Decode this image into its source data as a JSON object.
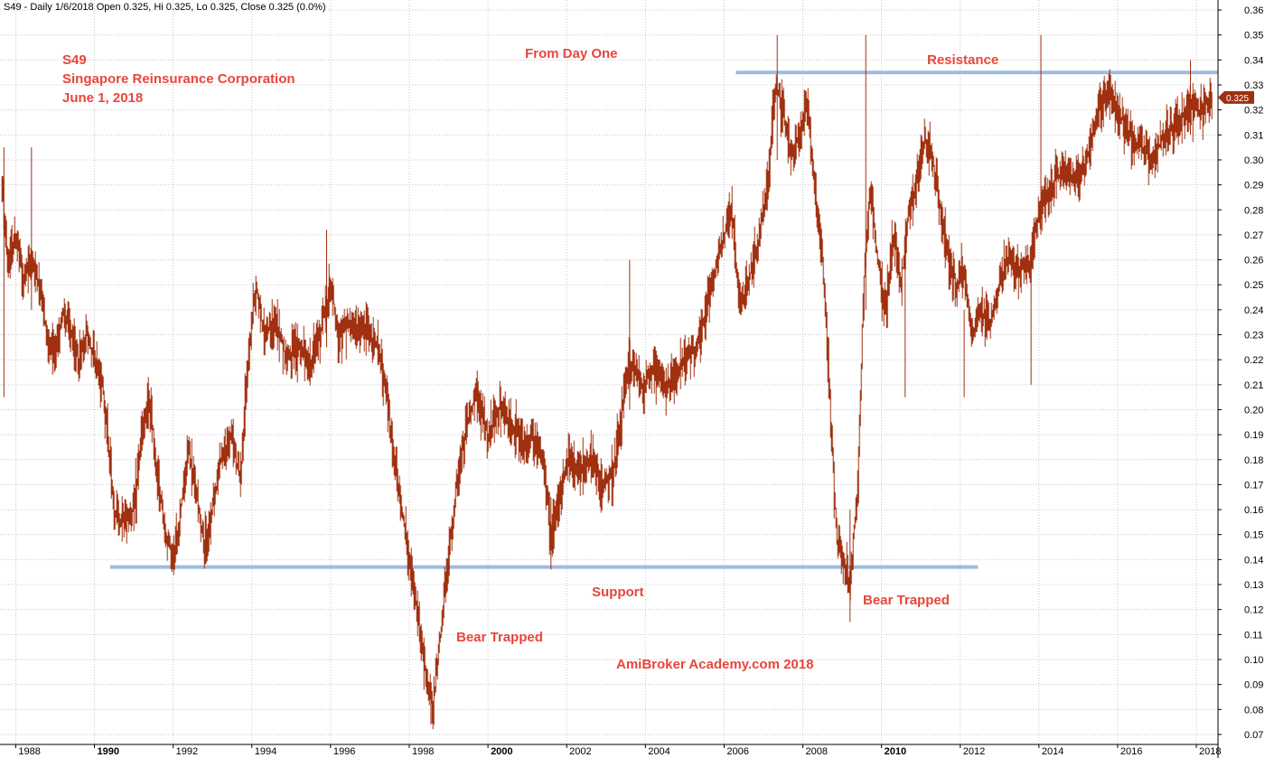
{
  "header": {
    "text": "S49 - Daily 1/6/2018 Open 0.325, Hi 0.325, Lo 0.325, Close 0.325 (0.0%)"
  },
  "annotations": {
    "ticker": "S49",
    "company": "Singapore Reinsurance Corporation",
    "date": "June 1, 2018",
    "from_day_one": "From Day One",
    "resistance": "Resistance",
    "support": "Support",
    "bear_trapped_1": "Bear Trapped",
    "bear_trapped_2": "Bear Trapped",
    "watermark": "AmiBroker Academy.com  2018"
  },
  "last_price_label": "0.325",
  "colors": {
    "price_line": "#a0300f",
    "level_line": "#9fbbe0",
    "annotation_text": "#e8463c",
    "last_price_bg": "#a0300f",
    "grid": "#c8c8c8"
  },
  "chart_data": {
    "type": "line",
    "title": "S49 Singapore Reinsurance Corporation",
    "xlim": [
      1987.6,
      2018.55
    ],
    "ylim": [
      0.066,
      0.364
    ],
    "x_ticks": [
      {
        "label": "1988",
        "x": 1988.0,
        "bold": false
      },
      {
        "label": "1990",
        "x": 1990.0,
        "bold": true
      },
      {
        "label": "1992",
        "x": 1992.0,
        "bold": false
      },
      {
        "label": "1994",
        "x": 1994.0,
        "bold": false
      },
      {
        "label": "1996",
        "x": 1996.0,
        "bold": false
      },
      {
        "label": "1998",
        "x": 1998.0,
        "bold": false
      },
      {
        "label": "2000",
        "x": 2000.0,
        "bold": true
      },
      {
        "label": "2002",
        "x": 2002.0,
        "bold": false
      },
      {
        "label": "2004",
        "x": 2004.0,
        "bold": false
      },
      {
        "label": "2006",
        "x": 2006.0,
        "bold": false
      },
      {
        "label": "2008",
        "x": 2008.0,
        "bold": false
      },
      {
        "label": "2010",
        "x": 2010.0,
        "bold": true
      },
      {
        "label": "2012",
        "x": 2012.0,
        "bold": false
      },
      {
        "label": "2014",
        "x": 2014.0,
        "bold": false
      },
      {
        "label": "2016",
        "x": 2016.0,
        "bold": false
      },
      {
        "label": "2018",
        "x": 2018.0,
        "bold": false
      }
    ],
    "y_ticks": [
      "0.07",
      "0.08",
      "0.09",
      "0.10",
      "0.11",
      "0.12",
      "0.13",
      "0.14",
      "0.15",
      "0.16",
      "0.17",
      "0.18",
      "0.19",
      "0.20",
      "0.21",
      "0.22",
      "0.23",
      "0.24",
      "0.25",
      "0.26",
      "0.27",
      "0.28",
      "0.29",
      "0.30",
      "0.31",
      "0.32",
      "0.33",
      "0.34",
      "0.35",
      "0.36"
    ],
    "support_level": {
      "value": 0.137,
      "x_start": 1990.4,
      "x_end": 2012.45
    },
    "resistance_level": {
      "value": 0.335,
      "x_start": 2006.3,
      "x_end": 2018.55
    },
    "last_close": 0.325,
    "series": [
      {
        "points": [
          [
            1987.65,
            0.29
          ],
          [
            1987.8,
            0.26
          ],
          [
            1988.0,
            0.27
          ],
          [
            1988.2,
            0.25
          ],
          [
            1988.4,
            0.26
          ],
          [
            1988.6,
            0.25
          ],
          [
            1988.8,
            0.23
          ],
          [
            1989.0,
            0.22
          ],
          [
            1989.2,
            0.24
          ],
          [
            1989.4,
            0.23
          ],
          [
            1989.6,
            0.22
          ],
          [
            1989.8,
            0.23
          ],
          [
            1990.0,
            0.22
          ],
          [
            1990.2,
            0.21
          ],
          [
            1990.35,
            0.19
          ],
          [
            1990.5,
            0.16
          ],
          [
            1990.7,
            0.155
          ],
          [
            1991.0,
            0.16
          ],
          [
            1991.2,
            0.19
          ],
          [
            1991.4,
            0.205
          ],
          [
            1991.6,
            0.175
          ],
          [
            1991.8,
            0.15
          ],
          [
            1992.0,
            0.14
          ],
          [
            1992.2,
            0.16
          ],
          [
            1992.4,
            0.185
          ],
          [
            1992.6,
            0.165
          ],
          [
            1992.8,
            0.145
          ],
          [
            1993.0,
            0.16
          ],
          [
            1993.2,
            0.18
          ],
          [
            1993.5,
            0.19
          ],
          [
            1993.7,
            0.17
          ],
          [
            1993.9,
            0.22
          ],
          [
            1994.1,
            0.25
          ],
          [
            1994.3,
            0.23
          ],
          [
            1994.6,
            0.235
          ],
          [
            1994.9,
            0.22
          ],
          [
            1995.2,
            0.225
          ],
          [
            1995.5,
            0.22
          ],
          [
            1995.8,
            0.235
          ],
          [
            1996.0,
            0.25
          ],
          [
            1996.2,
            0.23
          ],
          [
            1996.5,
            0.235
          ],
          [
            1996.8,
            0.232
          ],
          [
            1997.0,
            0.23
          ],
          [
            1997.2,
            0.225
          ],
          [
            1997.4,
            0.21
          ],
          [
            1997.6,
            0.18
          ],
          [
            1997.8,
            0.16
          ],
          [
            1998.0,
            0.14
          ],
          [
            1998.2,
            0.12
          ],
          [
            1998.4,
            0.095
          ],
          [
            1998.6,
            0.08
          ],
          [
            1998.8,
            0.11
          ],
          [
            1999.0,
            0.14
          ],
          [
            1999.2,
            0.17
          ],
          [
            1999.4,
            0.19
          ],
          [
            1999.7,
            0.205
          ],
          [
            2000.0,
            0.19
          ],
          [
            2000.3,
            0.2
          ],
          [
            2000.6,
            0.195
          ],
          [
            2000.9,
            0.185
          ],
          [
            2001.1,
            0.19
          ],
          [
            2001.4,
            0.18
          ],
          [
            2001.6,
            0.15
          ],
          [
            2001.8,
            0.165
          ],
          [
            2002.0,
            0.18
          ],
          [
            2002.3,
            0.175
          ],
          [
            2002.6,
            0.18
          ],
          [
            2002.9,
            0.17
          ],
          [
            2003.2,
            0.175
          ],
          [
            2003.4,
            0.2
          ],
          [
            2003.6,
            0.22
          ],
          [
            2003.9,
            0.21
          ],
          [
            2004.2,
            0.215
          ],
          [
            2004.5,
            0.21
          ],
          [
            2004.8,
            0.215
          ],
          [
            2005.1,
            0.22
          ],
          [
            2005.4,
            0.23
          ],
          [
            2005.7,
            0.25
          ],
          [
            2006.0,
            0.27
          ],
          [
            2006.2,
            0.28
          ],
          [
            2006.4,
            0.24
          ],
          [
            2006.6,
            0.25
          ],
          [
            2006.9,
            0.27
          ],
          [
            2007.1,
            0.29
          ],
          [
            2007.3,
            0.33
          ],
          [
            2007.5,
            0.32
          ],
          [
            2007.7,
            0.3
          ],
          [
            2007.9,
            0.31
          ],
          [
            2008.1,
            0.325
          ],
          [
            2008.3,
            0.29
          ],
          [
            2008.5,
            0.26
          ],
          [
            2008.7,
            0.2
          ],
          [
            2008.85,
            0.15
          ],
          [
            2009.0,
            0.14
          ],
          [
            2009.2,
            0.13
          ],
          [
            2009.4,
            0.17
          ],
          [
            2009.55,
            0.25
          ],
          [
            2009.7,
            0.29
          ],
          [
            2009.9,
            0.26
          ],
          [
            2010.1,
            0.24
          ],
          [
            2010.3,
            0.27
          ],
          [
            2010.5,
            0.25
          ],
          [
            2010.7,
            0.28
          ],
          [
            2010.9,
            0.29
          ],
          [
            2011.1,
            0.31
          ],
          [
            2011.3,
            0.3
          ],
          [
            2011.5,
            0.28
          ],
          [
            2011.7,
            0.26
          ],
          [
            2011.9,
            0.25
          ],
          [
            2012.1,
            0.255
          ],
          [
            2012.3,
            0.23
          ],
          [
            2012.5,
            0.24
          ],
          [
            2012.8,
            0.235
          ],
          [
            2013.0,
            0.25
          ],
          [
            2013.2,
            0.26
          ],
          [
            2013.5,
            0.255
          ],
          [
            2013.8,
            0.26
          ],
          [
            2014.0,
            0.28
          ],
          [
            2014.3,
            0.29
          ],
          [
            2014.6,
            0.295
          ],
          [
            2014.9,
            0.29
          ],
          [
            2015.2,
            0.3
          ],
          [
            2015.5,
            0.32
          ],
          [
            2015.8,
            0.325
          ],
          [
            2016.0,
            0.32
          ],
          [
            2016.3,
            0.31
          ],
          [
            2016.6,
            0.305
          ],
          [
            2016.9,
            0.3
          ],
          [
            2017.2,
            0.31
          ],
          [
            2017.5,
            0.315
          ],
          [
            2017.8,
            0.32
          ],
          [
            2018.1,
            0.32
          ],
          [
            2018.4,
            0.325
          ]
        ]
      }
    ],
    "spikes": [
      {
        "x": 1987.7,
        "high": 0.305,
        "low": 0.205
      },
      {
        "x": 1988.4,
        "high": 0.305,
        "low": 0.24
      },
      {
        "x": 1995.9,
        "high": 0.272,
        "low": 0.225
      },
      {
        "x": 1998.55,
        "high": 0.09,
        "low": 0.074
      },
      {
        "x": 2001.6,
        "high": 0.165,
        "low": 0.136
      },
      {
        "x": 2003.6,
        "high": 0.26,
        "low": 0.2
      },
      {
        "x": 2007.35,
        "high": 0.35,
        "low": 0.3
      },
      {
        "x": 2009.2,
        "high": 0.16,
        "low": 0.115
      },
      {
        "x": 2009.6,
        "high": 0.35,
        "low": 0.24
      },
      {
        "x": 2010.6,
        "high": 0.27,
        "low": 0.205
      },
      {
        "x": 2012.1,
        "high": 0.24,
        "low": 0.205
      },
      {
        "x": 2013.8,
        "high": 0.26,
        "low": 0.21
      },
      {
        "x": 2014.05,
        "high": 0.35,
        "low": 0.27
      },
      {
        "x": 2017.85,
        "high": 0.34,
        "low": 0.31
      }
    ]
  }
}
